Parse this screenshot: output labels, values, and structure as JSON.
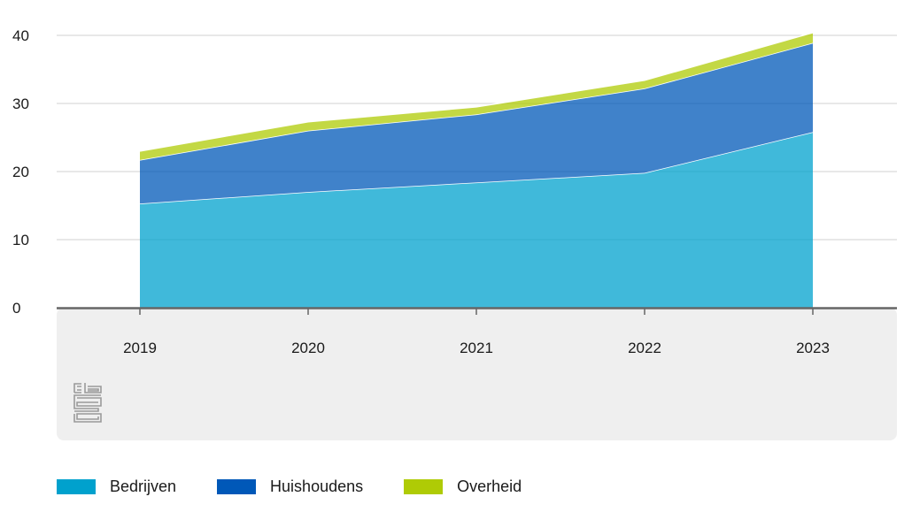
{
  "chart_data": {
    "type": "area",
    "stacked": true,
    "categories": [
      "2019",
      "2020",
      "2021",
      "2022",
      "2023"
    ],
    "series": [
      {
        "name": "Bedrijven",
        "color": "#00a1cd",
        "values": [
          15.3,
          17.0,
          18.4,
          19.8,
          25.8
        ]
      },
      {
        "name": "Huishoudens",
        "color": "#0058b8",
        "values": [
          6.4,
          9.0,
          10.0,
          12.4,
          13.1
        ]
      },
      {
        "name": "Overheid",
        "color": "#afcb05",
        "values": [
          1.3,
          1.3,
          1.1,
          1.2,
          1.5
        ]
      }
    ],
    "ylim": [
      0,
      40
    ],
    "yticks": [
      "0",
      "10",
      "20",
      "30",
      "40"
    ],
    "grid": true,
    "legend_position": "bottom-left",
    "title": "",
    "xlabel": "",
    "ylabel": ""
  },
  "logo": {
    "name": "cbs-logo-icon",
    "text": "cbs"
  }
}
